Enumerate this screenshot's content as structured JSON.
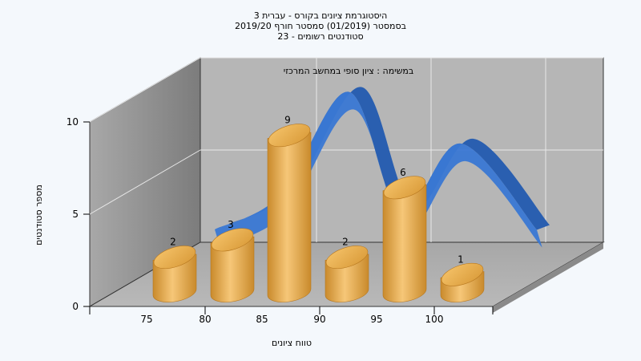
{
  "titles": {
    "line1": "היסטוגרמת ציונים בקורס - עברית 3",
    "line2": "בסמסטר  (01/2019)  סמסטר חורף 2019/20",
    "line3": "סטודנטים רשומים - 23"
  },
  "chart_data": {
    "type": "bar",
    "subtitle": "במשימה : ציון סופי במחשב המרכזי",
    "categories": [
      "75",
      "80",
      "85",
      "90",
      "95",
      "100"
    ],
    "values": [
      2,
      3,
      9,
      2,
      6,
      1
    ],
    "xlabel": "טווח ציונים",
    "ylabel": "מספר סטודנטים",
    "ylim": [
      0,
      10
    ],
    "yticks": [
      0,
      5,
      10
    ],
    "xticks": [
      "75",
      "80",
      "85",
      "90",
      "95",
      "100"
    ],
    "grid": true,
    "colors": {
      "bar": "#e8a84a",
      "bar_dark": "#c98a2c",
      "ribbon": "#2f6cc4"
    }
  }
}
